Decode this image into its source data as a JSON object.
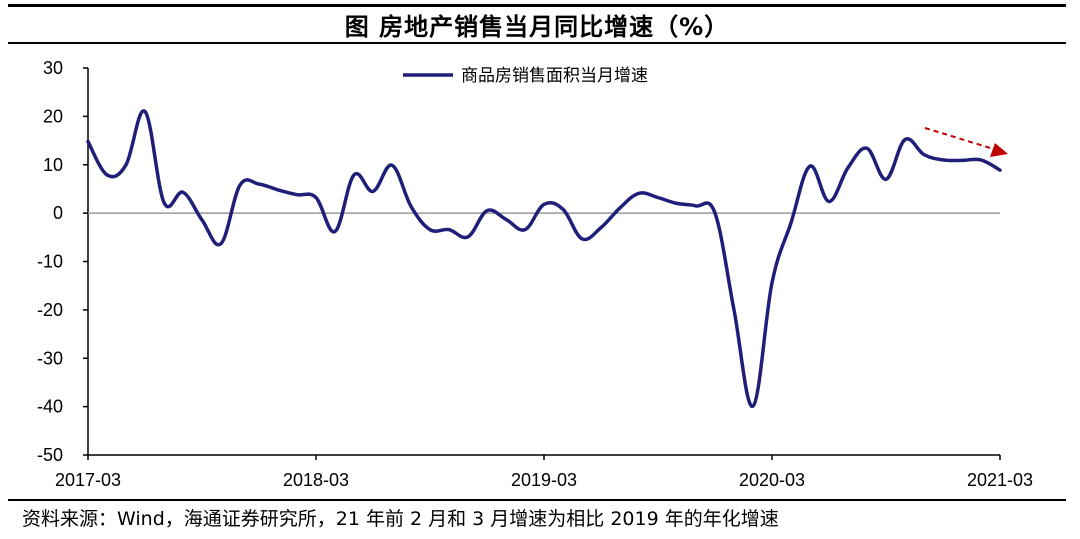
{
  "title": "图  房地产销售当月同比增速（%）",
  "source": "资料来源：Wind，海通证券研究所，21 年前 2 月和 3 月增速为相比 2019 年的年化增速",
  "colors": {
    "series": "#1f1f7a",
    "arrow": "#c00000",
    "zero_line": "#9a9a9a",
    "axis": "#000000"
  },
  "chart_data": {
    "type": "line",
    "title": "",
    "xlabel": "",
    "ylabel": "",
    "ylim": [
      -50,
      30
    ],
    "yticks": [
      30,
      20,
      10,
      0,
      -10,
      -20,
      -30,
      -40,
      -50
    ],
    "x_ticks": [
      "2017-03",
      "2018-03",
      "2019-03",
      "2020-03",
      "2021-03"
    ],
    "legend_position": "top-center",
    "grid": false,
    "annotations": [
      "downward trend arrow near 2021-01"
    ],
    "x": [
      "2017-03",
      "2017-04",
      "2017-05",
      "2017-06",
      "2017-07",
      "2017-08",
      "2017-09",
      "2017-10",
      "2017-11",
      "2017-12",
      "2018-01",
      "2018-02",
      "2018-03",
      "2018-04",
      "2018-05",
      "2018-06",
      "2018-07",
      "2018-08",
      "2018-09",
      "2018-10",
      "2018-11",
      "2018-12",
      "2019-01",
      "2019-02",
      "2019-03",
      "2019-04",
      "2019-05",
      "2019-06",
      "2019-07",
      "2019-08",
      "2019-09",
      "2019-10",
      "2019-11",
      "2019-12",
      "2020-01",
      "2020-02",
      "2020-03",
      "2020-04",
      "2020-05",
      "2020-06",
      "2020-07",
      "2020-08",
      "2020-09",
      "2020-10",
      "2020-11",
      "2020-12",
      "2021-01",
      "2021-02",
      "2021-03"
    ],
    "series": [
      {
        "name": "商品房销售面积当月增速",
        "values": [
          14.8,
          7.9,
          10.0,
          21.0,
          2.2,
          4.3,
          -1.4,
          -6.3,
          5.8,
          6.0,
          4.8,
          3.8,
          3.2,
          -3.8,
          7.9,
          4.5,
          9.9,
          1.4,
          -3.4,
          -3.4,
          -4.9,
          0.5,
          -1.3,
          -3.4,
          1.8,
          0.8,
          -5.3,
          -3.0,
          1.1,
          4.1,
          3.2,
          2.0,
          1.5,
          0.0,
          -20.0,
          -39.9,
          -14.4,
          -2.0,
          9.7,
          2.4,
          9.4,
          13.4,
          7.0,
          15.2,
          12.1,
          11.0,
          10.9,
          11.0,
          8.9
        ]
      }
    ]
  }
}
